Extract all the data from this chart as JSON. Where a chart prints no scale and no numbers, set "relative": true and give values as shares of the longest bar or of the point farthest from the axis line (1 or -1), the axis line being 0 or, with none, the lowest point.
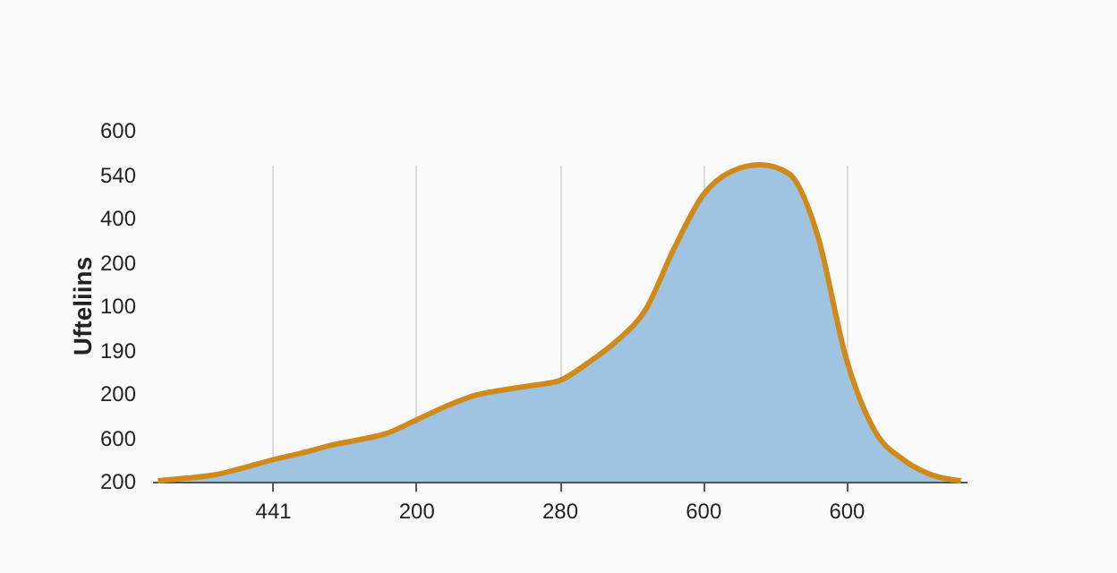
{
  "chart_data": {
    "type": "area",
    "ylabel": "Ufteliins",
    "relative": true,
    "grid": "x",
    "annotations": [
      "600",
      "540",
      "400",
      "200",
      "100",
      "190",
      "200",
      "600",
      "200"
    ],
    "categories": [
      null,
      null,
      null,
      null,
      "441",
      null,
      null,
      null,
      null,
      "200",
      null,
      null,
      null,
      null,
      "280",
      null,
      null,
      null,
      null,
      "600",
      null,
      null,
      null,
      null,
      "600",
      null,
      null,
      null,
      null
    ],
    "series": [
      {
        "color": "#9fc4e1",
        "values": [
          0.003,
          0.011,
          0.022,
          0.044,
          0.069,
          0.09,
          0.114,
          0.132,
          0.153,
          0.194,
          0.236,
          0.271,
          0.289,
          0.303,
          0.319,
          0.375,
          0.444,
          0.542,
          0.736,
          0.903,
          0.979,
          1,
          0.972,
          0.778,
          0.389,
          0.16,
          0.069,
          0.021,
          0.003
        ]
      }
    ]
  }
}
